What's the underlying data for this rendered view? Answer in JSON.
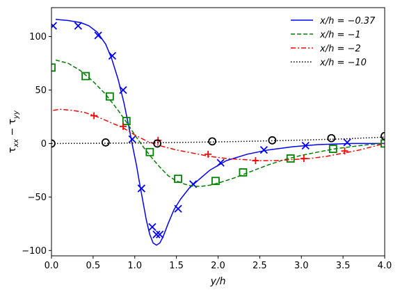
{
  "chart_data": {
    "type": "line",
    "xlabel": "y/h",
    "ylabel": "τxx − τyy",
    "xlim": [
      0,
      4
    ],
    "ylim": [
      -105,
      127
    ],
    "xticks": [
      0.0,
      0.5,
      1.0,
      1.5,
      2.0,
      2.5,
      3.0,
      3.5,
      4.0
    ],
    "xtick_labels": [
      "0.0",
      "0.5",
      "1.0",
      "1.5",
      "2.0",
      "2.5",
      "3.0",
      "3.5",
      "4.0"
    ],
    "yticks": [
      -100,
      -50,
      0,
      50,
      100
    ],
    "ytick_labels": [
      "−100",
      "−50",
      "0",
      "50",
      "100"
    ],
    "grid": false,
    "legend_position": "top-right",
    "series": [
      {
        "name": "x/h = −0.37",
        "color": "#0000ff",
        "line_style": "solid",
        "marker": "x",
        "line": [
          [
            0.05,
            116
          ],
          [
            0.2,
            115
          ],
          [
            0.35,
            113
          ],
          [
            0.45,
            110
          ],
          [
            0.55,
            104
          ],
          [
            0.65,
            93
          ],
          [
            0.72,
            80
          ],
          [
            0.8,
            60
          ],
          [
            0.87,
            38
          ],
          [
            0.93,
            15
          ],
          [
            0.98,
            -5
          ],
          [
            1.02,
            -20
          ],
          [
            1.06,
            -38
          ],
          [
            1.1,
            -55
          ],
          [
            1.14,
            -72
          ],
          [
            1.18,
            -85
          ],
          [
            1.22,
            -93
          ],
          [
            1.26,
            -95
          ],
          [
            1.3,
            -93
          ],
          [
            1.34,
            -87
          ],
          [
            1.4,
            -75
          ],
          [
            1.47,
            -62
          ],
          [
            1.55,
            -52
          ],
          [
            1.65,
            -42
          ],
          [
            1.75,
            -35
          ],
          [
            1.9,
            -25
          ],
          [
            2.1,
            -16
          ],
          [
            2.35,
            -10
          ],
          [
            2.6,
            -6
          ],
          [
            2.9,
            -3
          ],
          [
            3.2,
            -1
          ],
          [
            3.6,
            0
          ],
          [
            4.0,
            0
          ]
        ],
        "markers": [
          [
            0.02,
            110
          ],
          [
            0.32,
            110
          ],
          [
            0.56,
            101
          ],
          [
            0.73,
            82
          ],
          [
            0.86,
            50
          ],
          [
            0.97,
            4
          ],
          [
            1.08,
            -42
          ],
          [
            1.21,
            -78
          ],
          [
            1.26,
            -85
          ],
          [
            1.3,
            -85
          ],
          [
            1.52,
            -61
          ],
          [
            1.7,
            -38
          ],
          [
            2.03,
            -18
          ],
          [
            2.55,
            -6
          ],
          [
            3.05,
            -2
          ],
          [
            3.55,
            1
          ]
        ]
      },
      {
        "name": "x/h = −1",
        "color": "#008000",
        "line_style": "dashed",
        "marker": "square",
        "line": [
          [
            0.05,
            78
          ],
          [
            0.2,
            75
          ],
          [
            0.35,
            68
          ],
          [
            0.5,
            58
          ],
          [
            0.65,
            46
          ],
          [
            0.8,
            31
          ],
          [
            0.9,
            20
          ],
          [
            1.0,
            8
          ],
          [
            1.1,
            -3
          ],
          [
            1.2,
            -13
          ],
          [
            1.3,
            -22
          ],
          [
            1.4,
            -30
          ],
          [
            1.5,
            -35
          ],
          [
            1.6,
            -38
          ],
          [
            1.7,
            -40
          ],
          [
            1.8,
            -40
          ],
          [
            1.9,
            -39
          ],
          [
            2.0,
            -37
          ],
          [
            2.2,
            -32
          ],
          [
            2.4,
            -26
          ],
          [
            2.6,
            -20
          ],
          [
            2.8,
            -15
          ],
          [
            3.0,
            -11
          ],
          [
            3.2,
            -8
          ],
          [
            3.4,
            -5
          ],
          [
            3.6,
            -3
          ],
          [
            3.8,
            -1
          ],
          [
            4.0,
            0
          ]
        ],
        "markers": [
          [
            0.0,
            71
          ],
          [
            0.41,
            63
          ],
          [
            0.7,
            44
          ],
          [
            0.9,
            21
          ],
          [
            1.18,
            -8
          ],
          [
            1.52,
            -33
          ],
          [
            1.97,
            -35
          ],
          [
            2.3,
            -27
          ],
          [
            2.87,
            -14
          ],
          [
            3.38,
            -5
          ],
          [
            4.0,
            0
          ]
        ]
      },
      {
        "name": "x/h = −2",
        "color": "#ff0000",
        "line_style": "dashdot",
        "marker": "plus",
        "line": [
          [
            0.02,
            31
          ],
          [
            0.1,
            32
          ],
          [
            0.25,
            31
          ],
          [
            0.4,
            29
          ],
          [
            0.55,
            25
          ],
          [
            0.7,
            20
          ],
          [
            0.85,
            15
          ],
          [
            1.0,
            8
          ],
          [
            1.15,
            2
          ],
          [
            1.3,
            -2
          ],
          [
            1.5,
            -6
          ],
          [
            1.7,
            -9
          ],
          [
            1.9,
            -12
          ],
          [
            2.1,
            -14
          ],
          [
            2.3,
            -15
          ],
          [
            2.5,
            -16
          ],
          [
            2.7,
            -16
          ],
          [
            2.9,
            -15
          ],
          [
            3.1,
            -14
          ],
          [
            3.3,
            -12
          ],
          [
            3.5,
            -9
          ],
          [
            3.7,
            -6
          ],
          [
            3.85,
            -3
          ],
          [
            4.0,
            0
          ]
        ],
        "markers": [
          [
            0.51,
            26
          ],
          [
            0.86,
            16
          ],
          [
            1.28,
            3
          ],
          [
            1.88,
            -10
          ],
          [
            2.45,
            -16
          ],
          [
            3.03,
            -14
          ],
          [
            3.52,
            -7
          ]
        ]
      },
      {
        "name": "x/h = −10",
        "color": "#000000",
        "line_style": "dotted",
        "marker": "circle",
        "line": [
          [
            0.0,
            0
          ],
          [
            0.5,
            0.2
          ],
          [
            1.0,
            0.5
          ],
          [
            1.5,
            1
          ],
          [
            2.0,
            1.5
          ],
          [
            2.5,
            2.3
          ],
          [
            3.0,
            3.2
          ],
          [
            3.5,
            4.3
          ],
          [
            4.0,
            6
          ]
        ],
        "markers": [
          [
            0.0,
            0
          ],
          [
            0.65,
            1
          ],
          [
            1.27,
            0
          ],
          [
            1.93,
            2
          ],
          [
            2.65,
            3
          ],
          [
            3.36,
            5
          ],
          [
            4.0,
            7
          ]
        ]
      }
    ]
  }
}
